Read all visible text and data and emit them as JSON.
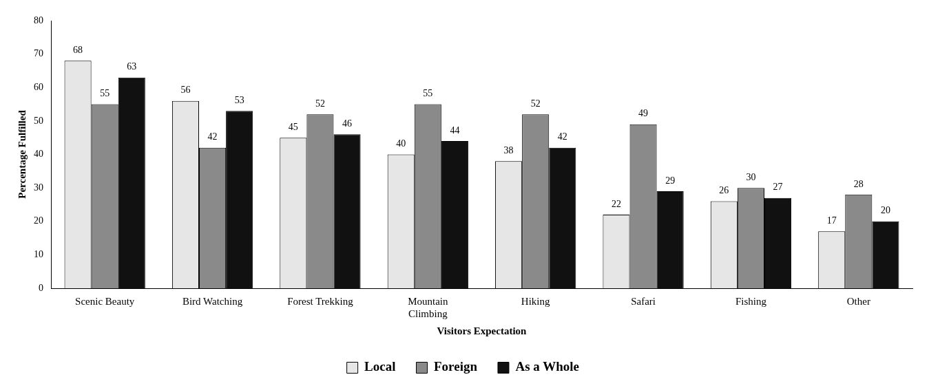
{
  "chart_data": {
    "type": "bar",
    "xlabel": "Visitors Expectation",
    "ylabel": "Percentage Fulfilled",
    "categories": [
      "Scenic Beauty",
      "Bird Watching",
      "Forest Trekking",
      "Mountain Climbing",
      "Hiking",
      "Safari",
      "Fishing",
      "Other"
    ],
    "series": [
      {
        "name": "Local",
        "color": "#e6e6e6",
        "values": [
          68,
          56,
          45,
          40,
          38,
          22,
          26,
          17
        ]
      },
      {
        "name": "Foreign",
        "color": "#8a8a8a",
        "values": [
          55,
          42,
          52,
          55,
          52,
          49,
          30,
          28
        ]
      },
      {
        "name": "As a Whole",
        "color": "#111111",
        "values": [
          63,
          53,
          46,
          44,
          42,
          29,
          27,
          20
        ]
      }
    ],
    "ylim": [
      0,
      80
    ],
    "yticks": [
      0,
      10,
      20,
      30,
      40,
      50,
      60,
      70,
      80
    ],
    "grid": false,
    "legend": "bottom",
    "data_labels": true
  }
}
